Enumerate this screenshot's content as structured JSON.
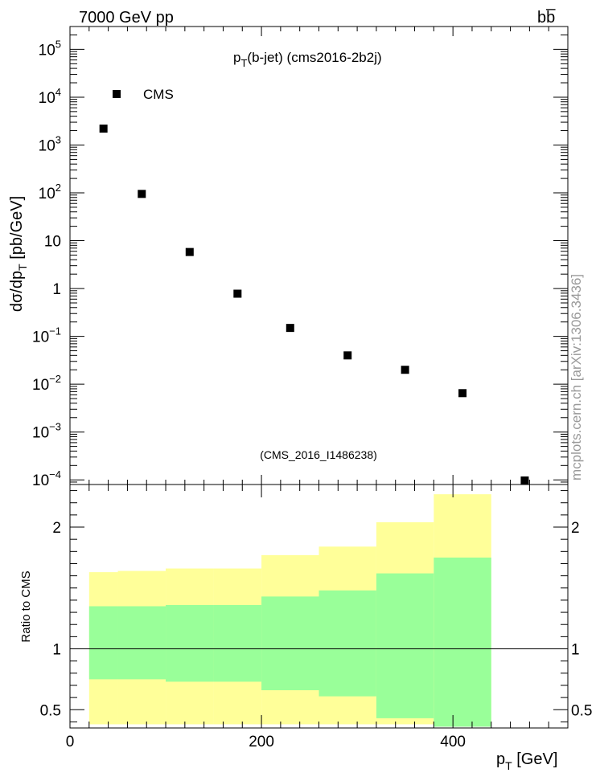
{
  "header": {
    "left": "7000 GeV pp",
    "right": "bb̅"
  },
  "side_label": "mcplots.cern.ch [arXiv:1306.3436]",
  "chart_data": [
    {
      "type": "scatter",
      "title": "p_T(b-jet) (cms2016-2b2j)",
      "title_main": "p",
      "title_sub": "T",
      "title_rest": "(b-jet) (cms2016-2b2j)",
      "ylabel": "dσ/dp_T [pb/GeV]",
      "ylabel_main": "dσ/dp",
      "ylabel_sub": "T",
      "ylabel_rest": " [pb/GeV]",
      "yscale": "log",
      "xlim": [
        0,
        520
      ],
      "ylim": [
        8e-05,
        300000
      ],
      "yticks": [
        {
          "v": 100000,
          "label": "10",
          "exp": "5"
        },
        {
          "v": 10000,
          "label": "10",
          "exp": "4"
        },
        {
          "v": 1000,
          "label": "10",
          "exp": "3"
        },
        {
          "v": 100,
          "label": "10",
          "exp": "2"
        },
        {
          "v": 10,
          "label": "10",
          "exp": ""
        },
        {
          "v": 1,
          "label": "1",
          "exp": ""
        },
        {
          "v": 0.1,
          "label": "10",
          "exp": "−1"
        },
        {
          "v": 0.01,
          "label": "10",
          "exp": "−2"
        },
        {
          "v": 0.001,
          "label": "10",
          "exp": "−3"
        },
        {
          "v": 0.0001,
          "label": "10",
          "exp": "−4"
        }
      ],
      "legend": {
        "entry": "CMS",
        "position": "top-left"
      },
      "watermark": "(CMS_2016_I1486238)",
      "series": [
        {
          "name": "CMS",
          "x": [
            35,
            75,
            125,
            175,
            230,
            290,
            350,
            410,
            475
          ],
          "y": [
            2200,
            95,
            5.8,
            0.78,
            0.15,
            0.04,
            0.02,
            0.0065,
            9e-05
          ]
        }
      ]
    },
    {
      "type": "area",
      "ylabel": "Ratio to CMS",
      "xlabel": "p_T [GeV]",
      "xlabel_main": "p",
      "xlabel_sub": "T",
      "xlabel_rest": " [GeV]",
      "xlim": [
        0,
        520
      ],
      "ylim": [
        0.35,
        2.35
      ],
      "xticks": [
        0,
        200,
        400
      ],
      "yticks": [
        0.5,
        1,
        2
      ],
      "reference_line": 1,
      "bands": {
        "bin_edges": [
          20,
          50,
          100,
          150,
          200,
          260,
          320,
          380,
          440
        ],
        "yellow_low": [
          0.38,
          0.38,
          0.38,
          0.38,
          0.38,
          0.38,
          0.38,
          0.36,
          0.36
        ],
        "yellow_high": [
          1.63,
          1.64,
          1.66,
          1.66,
          1.77,
          1.84,
          2.04,
          2.27,
          2.27
        ],
        "green_low": [
          0.75,
          0.75,
          0.73,
          0.73,
          0.66,
          0.61,
          0.43,
          0.36,
          0.36
        ],
        "green_high": [
          1.35,
          1.35,
          1.36,
          1.36,
          1.43,
          1.48,
          1.62,
          1.75,
          1.75
        ]
      },
      "band_colors": {
        "yellow": "#ffff99",
        "green": "#99ff99"
      }
    }
  ]
}
